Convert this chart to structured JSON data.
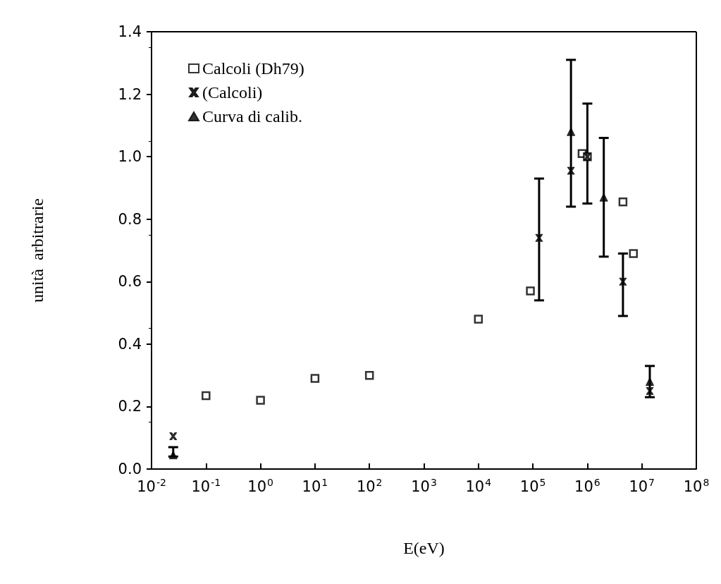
{
  "chart_data": {
    "type": "scatter",
    "xlabel": "E(eV)",
    "ylabel": "unità  arbitrarie",
    "log": "x",
    "grid": false,
    "legend": "top left",
    "xlim": [
      0.01,
      100000000
    ],
    "xticks": [
      {
        "value": 0.01,
        "label": "10$^{-2}$"
      },
      {
        "value": 0.1,
        "label": "10$^{-1}$"
      },
      {
        "value": 1,
        "label": "10$^{0}$"
      },
      {
        "value": 10,
        "label": "10$^{1}$"
      },
      {
        "value": 100,
        "label": "10$^{2}$"
      },
      {
        "value": 1000,
        "label": "10$^{3}$"
      },
      {
        "value": 10000,
        "label": "10$^{4}$"
      },
      {
        "value": 100000,
        "label": "10$^{5}$"
      },
      {
        "value": 1000000,
        "label": "10$^{6}$"
      },
      {
        "value": 10000000,
        "label": "10$^{7}$"
      },
      {
        "value": 100000000,
        "label": "10$^{8}$"
      }
    ],
    "ylim": [
      0,
      1.4
    ],
    "yticks": [
      {
        "value": 0,
        "label": "0.0"
      },
      0.2,
      0.4,
      0.6,
      0.8,
      {
        "value": 1,
        "label": "1.0"
      },
      1.2,
      1.4
    ],
    "series": [
      {
        "name": "Calcoli (Dh79)",
        "color": "#000000",
        "marker": "square",
        "x": [
          0.1,
          1,
          10,
          100,
          10000,
          90000,
          800000,
          1000000,
          4500000,
          7000000
        ],
        "values": [
          0.235,
          0.22,
          0.29,
          0.3,
          0.48,
          0.57,
          1.01,
          1.0,
          0.855,
          0.69
        ]
      },
      {
        "name": "(Calcoli)",
        "color": "#000000",
        "marker": "cross",
        "x": [
          0.025,
          130000,
          500000,
          1000000,
          4500000,
          14000000
        ],
        "values": [
          0.105,
          0.74,
          0.955,
          1.0,
          0.6,
          0.25
        ],
        "errors": [
          null,
          [
            0.54,
            0.93
          ],
          null,
          [
            0.85,
            1.17
          ],
          [
            0.49,
            0.69
          ],
          null
        ]
      },
      {
        "name": "Curva di calib.",
        "color": "#000000",
        "marker": "triangle",
        "x": [
          0.025,
          500000,
          2000000,
          14000000
        ],
        "values": [
          0.045,
          1.08,
          0.87,
          0.28
        ],
        "errors": [
          [
            0.04,
            0.07
          ],
          [
            0.84,
            1.31
          ],
          [
            0.68,
            1.06
          ],
          [
            0.23,
            0.33
          ]
        ]
      }
    ]
  }
}
